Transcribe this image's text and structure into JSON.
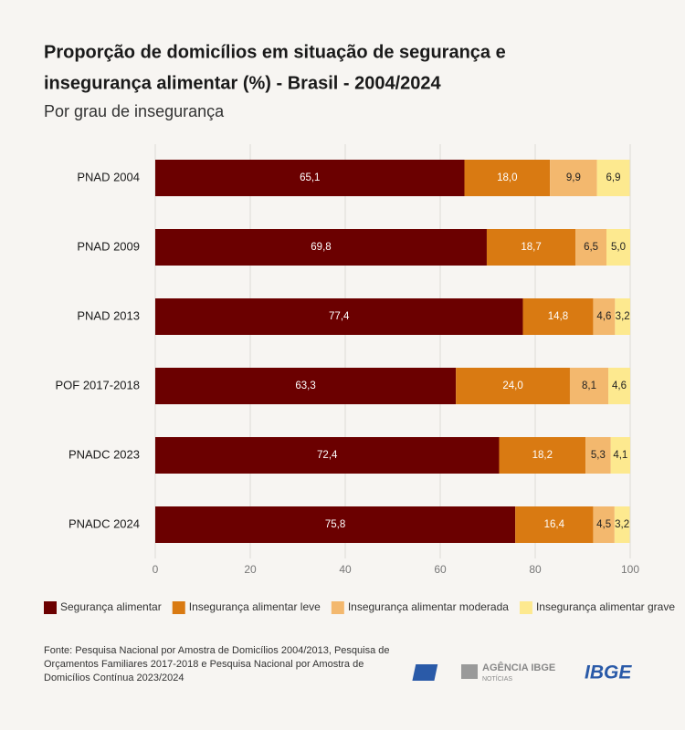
{
  "chart_data": {
    "type": "stacked-bar-horizontal",
    "title": [
      "Proporção de domicílios em situação de segurança e",
      "insegurança alimentar (%) - Brasil - 2004/2024"
    ],
    "subtitle": "Por grau de insegurança",
    "categories": [
      "PNAD 2004",
      "PNAD 2009",
      "PNAD 2013",
      "POF 2017-2018",
      "PNADC 2023",
      "PNADC 2024"
    ],
    "series": [
      {
        "name": "Segurança alimentar",
        "color": "#6b0000",
        "label_color": "#ffffff",
        "values": [
          65.1,
          69.8,
          77.4,
          63.3,
          72.4,
          75.8
        ],
        "value_labels": [
          "65,1",
          "69,8",
          "77,4",
          "63,3",
          "72,4",
          "75,8"
        ]
      },
      {
        "name": "Insegurança alimentar leve",
        "color": "#d97a12",
        "label_color": "#ffffff",
        "values": [
          18.0,
          18.7,
          14.8,
          24.0,
          18.2,
          16.4
        ],
        "value_labels": [
          "18,0",
          "18,7",
          "14,8",
          "24,0",
          "18,2",
          "16,4"
        ]
      },
      {
        "name": "Insegurança alimentar moderada",
        "color": "#f3b86e",
        "label_color": "#222222",
        "values": [
          9.9,
          6.5,
          4.6,
          8.1,
          5.3,
          4.5
        ],
        "value_labels": [
          "9,9",
          "6,5",
          "4,6",
          "8,1",
          "5,3",
          "4,5"
        ]
      },
      {
        "name": "Insegurança alimentar grave",
        "color": "#fde98f",
        "label_color": "#222222",
        "values": [
          6.9,
          5.0,
          3.2,
          4.6,
          4.1,
          3.2
        ],
        "value_labels": [
          "6,9",
          "5,0",
          "3,2",
          "4,6",
          "4,1",
          "3,2"
        ]
      }
    ],
    "xlim": [
      0,
      100
    ],
    "xticks": [
      0,
      20,
      40,
      60,
      80,
      100
    ],
    "grid": true,
    "legend": "bottom",
    "source": [
      "Fonte: Pesquisa Nacional por Amostra de Domicílios 2004/2013, Pesquisa de",
      "Orçamentos Familiares 2017-2018 e Pesquisa Nacional por Amostra de",
      "Domicílios Contínua 2023/2024"
    ],
    "logos": [
      "AGÊNCIA IBGE",
      "NOTÍCIAS",
      "IBGE"
    ]
  }
}
